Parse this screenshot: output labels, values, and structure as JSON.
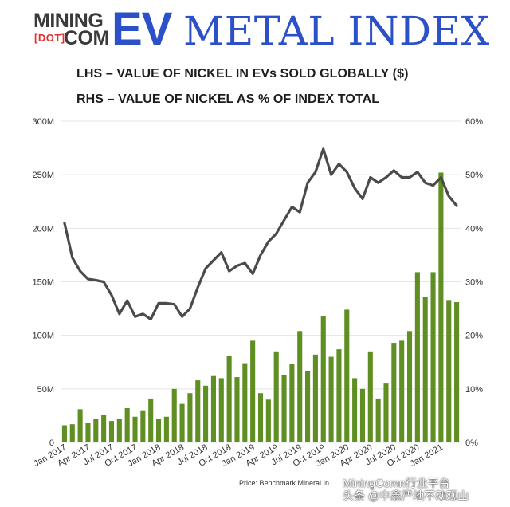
{
  "header": {
    "logo_mining": "MINING",
    "logo_dot": "[DOT]",
    "logo_com": "COM",
    "brand_ev": "EV",
    "brand_rest": "METAL INDEX",
    "subtitle_lhs": "LHS – VALUE OF NICKEL IN EVs SOLD GLOBALLY ($)",
    "subtitle_rhs": "RHS – VALUE OF NICKEL AS % OF INDEX TOTAL"
  },
  "colors": {
    "brand_blue": "#2c50c8",
    "bar_green": "#5f8f22",
    "line_gray": "#4a4a4a",
    "grid": "#e5e5e5"
  },
  "chart_data": {
    "type": "bar+line",
    "x_tick_labels": [
      "Jan 2017",
      "Apr 2017",
      "Jul 2017",
      "Oct 2017",
      "Jan 2018",
      "Apr 2018",
      "Jul 2018",
      "Oct 2018",
      "Jan 2019",
      "Apr 2019",
      "Jul 2019",
      "Oct 2019",
      "Jan 2020",
      "Apr 2020",
      "Jul 2020",
      "Oct 2020",
      "Jan 2021"
    ],
    "y_left_ticks": [
      "0",
      "50M",
      "100M",
      "150M",
      "200M",
      "250M",
      "300M"
    ],
    "y_left_lim": [
      0,
      300
    ],
    "y_right_ticks": [
      "0%",
      "10%",
      "20%",
      "30%",
      "40%",
      "50%",
      "60%"
    ],
    "y_right_lim": [
      0,
      60
    ],
    "series": [
      {
        "kind": "bar",
        "axis": "left",
        "values": [
          16,
          17,
          31,
          18,
          22,
          26,
          20,
          22,
          32,
          24,
          30,
          41,
          22,
          24,
          50,
          36,
          46,
          58,
          53,
          62,
          60,
          81,
          61,
          74,
          95,
          46,
          40,
          85,
          63,
          73,
          104,
          67,
          82,
          118,
          80,
          87,
          124,
          60,
          50,
          85,
          41,
          55,
          93,
          95,
          104,
          159,
          136,
          159,
          252,
          133,
          131
        ]
      },
      {
        "kind": "line",
        "axis": "right",
        "values": [
          41,
          34.5,
          32,
          30.5,
          30.3,
          30,
          27.5,
          24,
          26.5,
          23.5,
          24,
          23,
          26,
          26,
          25.8,
          23.5,
          25,
          29,
          32.5,
          34,
          35.5,
          32,
          33,
          33.5,
          31.5,
          35,
          37.5,
          39,
          41.5,
          44,
          43,
          48.5,
          50.5,
          54.8,
          50,
          52,
          50.5,
          47.5,
          45.5,
          49.5,
          48.5,
          49.5,
          50.8,
          49.5,
          49.5,
          50.5,
          48.5,
          48,
          49.5,
          46,
          44.2
        ]
      }
    ],
    "source": "Price: Benchmark Mineral In",
    "grid": "horizontal"
  },
  "watermark": {
    "line1": "MiningComn行业平台",
    "line2": "头条 @中鑫严地不动观山"
  }
}
